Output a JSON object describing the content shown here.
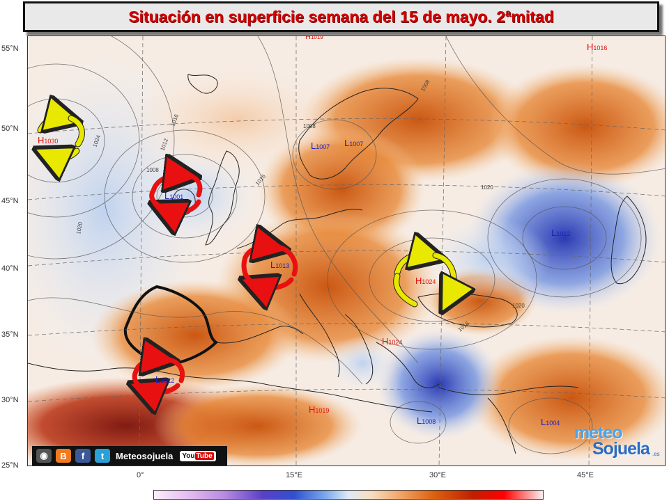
{
  "title": "Situación en superficie semana del 15 de mayo. 2ªmitad",
  "axes": {
    "lat_labels": [
      "55°N",
      "50°N",
      "45°N",
      "40°N",
      "35°N",
      "30°N",
      "25°N"
    ],
    "lon_labels": [
      "0°",
      "15°E",
      "30°E",
      "45°E"
    ]
  },
  "pressure_centers": [
    {
      "type": "H",
      "value": "1030",
      "color": "#e01010"
    },
    {
      "type": "L",
      "value": "1001",
      "color": "#2020c0"
    },
    {
      "type": "L",
      "value": "1007",
      "color": "#2020c0"
    },
    {
      "type": "L",
      "value": "1007",
      "color": "#2020c0"
    },
    {
      "type": "L",
      "value": "1013",
      "color": "#2020c0"
    },
    {
      "type": "H",
      "value": "1024",
      "color": "#e01010"
    },
    {
      "type": "L",
      "value": "1012",
      "color": "#2020c0"
    },
    {
      "type": "H",
      "value": "1024",
      "color": "#e01010"
    },
    {
      "type": "L",
      "value": "1012",
      "color": "#2020c0"
    },
    {
      "type": "H",
      "value": "1019",
      "color": "#e01010"
    },
    {
      "type": "L",
      "value": "1008",
      "color": "#2020c0"
    },
    {
      "type": "L",
      "value": "1004",
      "color": "#2020c0"
    },
    {
      "type": "H",
      "value": "1016",
      "color": "#e01010"
    },
    {
      "type": "H",
      "value": "1019",
      "color": "#e01010"
    }
  ],
  "isobar_labels": [
    "1024",
    "1020",
    "1016",
    "1012",
    "1008",
    "1016",
    "1020",
    "1016",
    "1020",
    "1008",
    "1008"
  ],
  "footer": {
    "social_name": "Meteosojuela",
    "youtube_you": "You",
    "youtube_tube": "Tube",
    "logo_top": "meteo",
    "logo_bottom": "Sojuela",
    "logo_suffix": ".es"
  },
  "colors": {
    "warm_anomaly": "#e07020",
    "cold_anomaly": "#3050c8",
    "anticyclone_arrow": "#e8e800",
    "cyclone_arrow": "#e81010"
  }
}
